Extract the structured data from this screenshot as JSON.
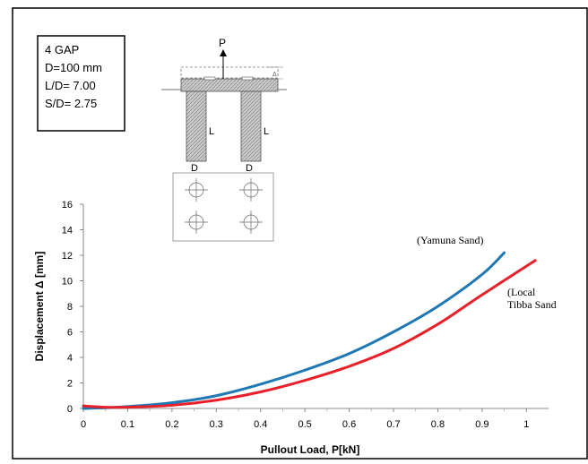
{
  "info_box": {
    "lines": [
      "4 GAP",
      "D=100 mm",
      "L/D= 7.00",
      "S/D= 2.75"
    ]
  },
  "schematic": {
    "load_label": "P",
    "delta_label": "Δ",
    "pile_length_label": "L",
    "pile_diameter_label": "D"
  },
  "chart_data": {
    "type": "line",
    "xlabel": "Pullout Load, P[kN]",
    "ylabel": "Displacement Δ [mm]",
    "xlim": [
      0,
      1.05
    ],
    "ylim": [
      0,
      16
    ],
    "xticks": [
      0,
      0.1,
      0.2,
      0.3,
      0.4,
      0.5,
      0.6,
      0.7,
      0.8,
      0.9,
      1
    ],
    "yticks": [
      0,
      2,
      4,
      6,
      8,
      10,
      12,
      14,
      16
    ],
    "grid": false,
    "series": [
      {
        "name": "(Yamuna Sand)",
        "color": "#1f77b4",
        "x": [
          0.0,
          0.05,
          0.1,
          0.2,
          0.3,
          0.4,
          0.5,
          0.6,
          0.7,
          0.8,
          0.9,
          0.95
        ],
        "y": [
          0.0,
          0.05,
          0.15,
          0.45,
          1.0,
          1.9,
          3.0,
          4.3,
          6.0,
          8.0,
          10.5,
          12.2
        ]
      },
      {
        "name": "(Local Tibba Sand",
        "label_lines": [
          "(Local",
          "Tibba Sand"
        ],
        "color": "#e8202a",
        "x": [
          0.0,
          0.05,
          0.1,
          0.2,
          0.3,
          0.4,
          0.5,
          0.6,
          0.7,
          0.8,
          0.9,
          1.02
        ],
        "y": [
          0.2,
          0.1,
          0.1,
          0.25,
          0.65,
          1.3,
          2.2,
          3.3,
          4.7,
          6.6,
          8.9,
          11.6
        ]
      }
    ]
  }
}
